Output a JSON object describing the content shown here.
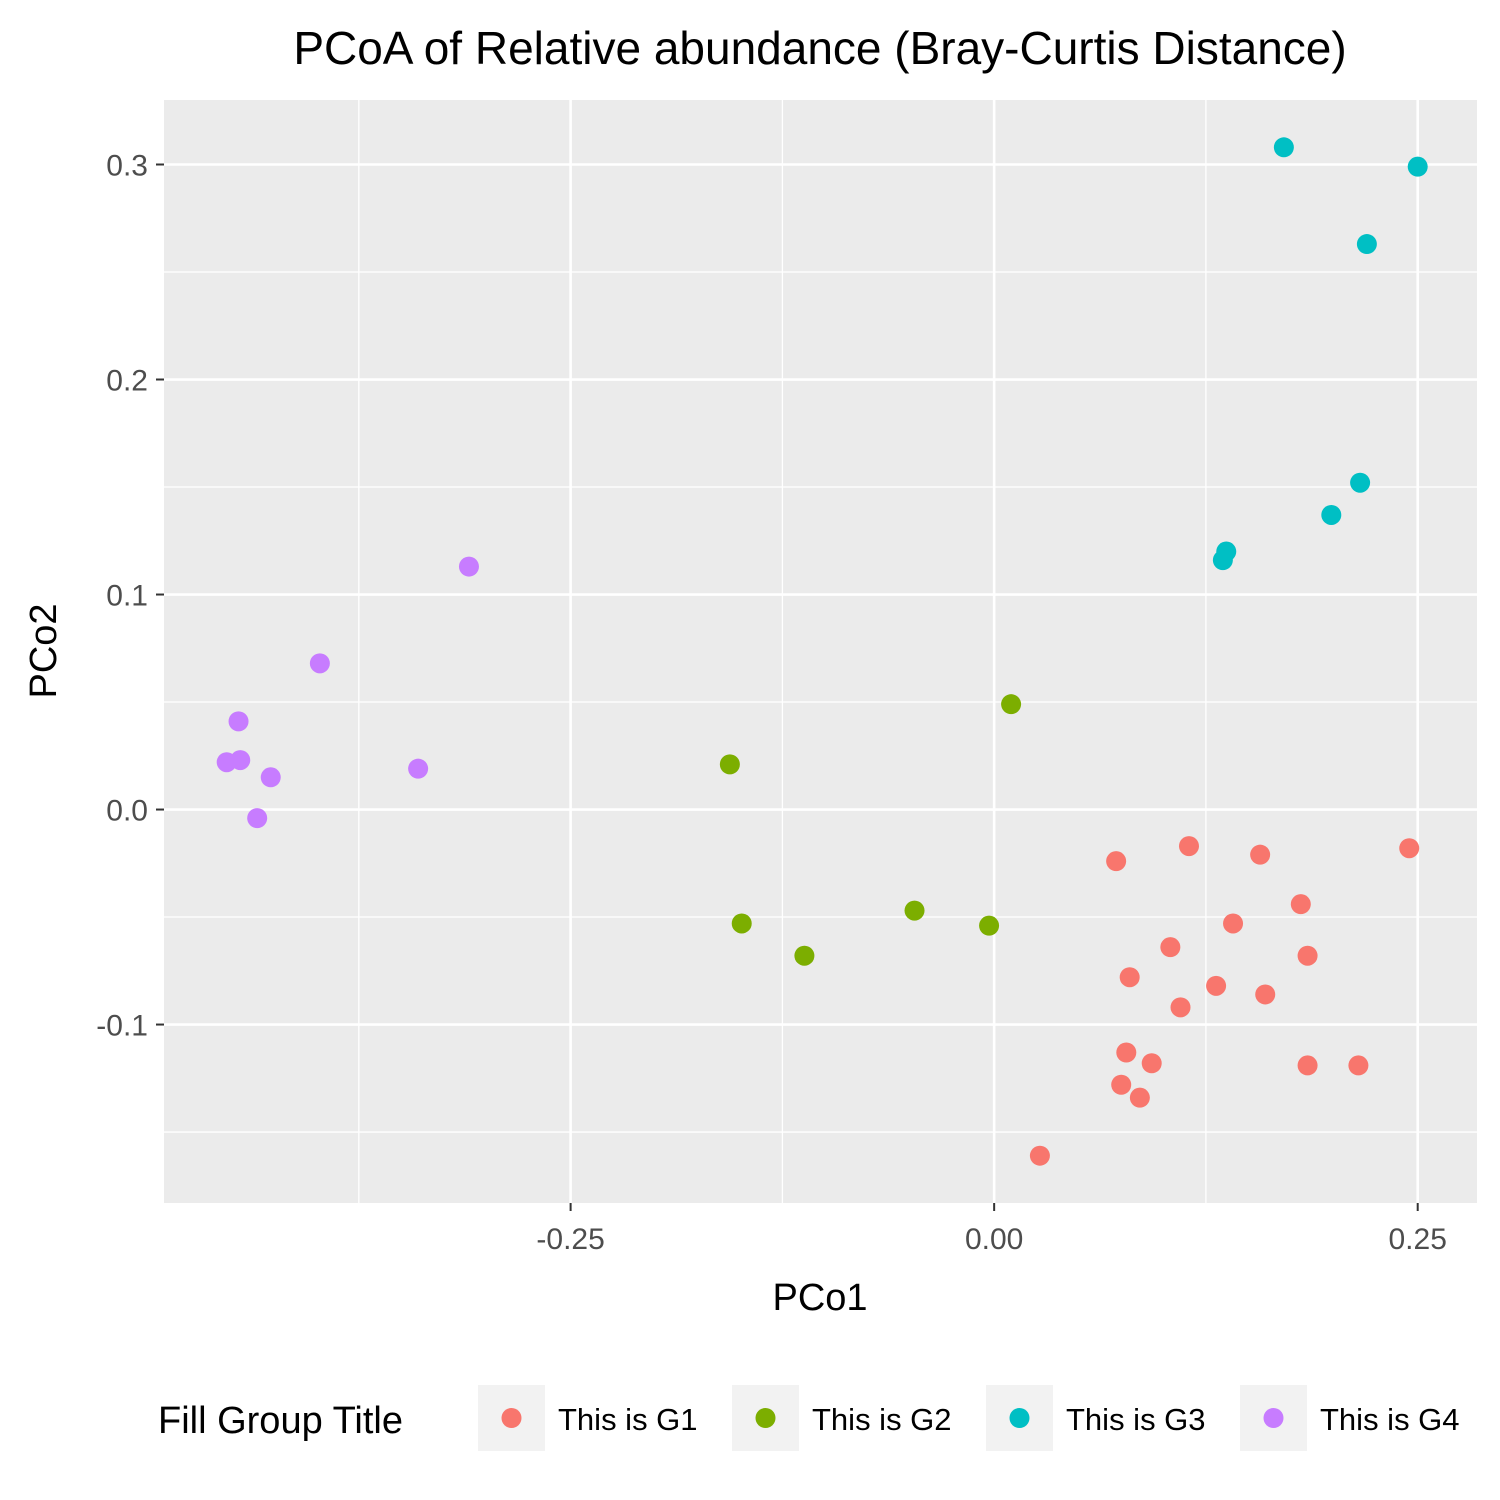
{
  "chart_data": {
    "type": "scatter",
    "title": "PCoA of Relative abundance (Bray-Curtis Distance)",
    "xlabel": "PCo1",
    "ylabel": "PCo2",
    "xlim": [
      -0.49,
      0.285
    ],
    "ylim": [
      -0.183,
      0.33
    ],
    "x_ticks": [
      -0.25,
      0.0,
      0.25
    ],
    "x_tick_labels": [
      "-0.25",
      "0.00",
      "0.25"
    ],
    "y_ticks": [
      -0.1,
      0.0,
      0.1,
      0.2,
      0.3
    ],
    "y_tick_labels": [
      "-0.1",
      "0.0",
      "0.1",
      "0.2",
      "0.3"
    ],
    "grid": true,
    "legend_position": "bottom",
    "legend_title": "Fill Group Title",
    "series": [
      {
        "name": "This is G1",
        "color": "#F8766D",
        "points": [
          [
            0.072,
            -0.024
          ],
          [
            0.115,
            -0.017
          ],
          [
            0.157,
            -0.021
          ],
          [
            0.245,
            -0.018
          ],
          [
            0.181,
            -0.044
          ],
          [
            0.141,
            -0.053
          ],
          [
            0.104,
            -0.064
          ],
          [
            0.08,
            -0.078
          ],
          [
            0.185,
            -0.068
          ],
          [
            0.131,
            -0.082
          ],
          [
            0.16,
            -0.086
          ],
          [
            0.11,
            -0.092
          ],
          [
            0.078,
            -0.113
          ],
          [
            0.093,
            -0.118
          ],
          [
            0.185,
            -0.119
          ],
          [
            0.215,
            -0.119
          ],
          [
            0.075,
            -0.128
          ],
          [
            0.086,
            -0.134
          ],
          [
            0.027,
            -0.161
          ]
        ]
      },
      {
        "name": "This is G2",
        "color": "#7CAE00",
        "points": [
          [
            0.01,
            0.049
          ],
          [
            -0.156,
            0.021
          ],
          [
            -0.149,
            -0.053
          ],
          [
            -0.047,
            -0.047
          ],
          [
            -0.003,
            -0.054
          ],
          [
            -0.112,
            -0.068
          ]
        ]
      },
      {
        "name": "This is G3",
        "color": "#00BFC4",
        "points": [
          [
            0.171,
            0.308
          ],
          [
            0.25,
            0.299
          ],
          [
            0.22,
            0.263
          ],
          [
            0.216,
            0.152
          ],
          [
            0.199,
            0.137
          ],
          [
            0.137,
            0.12
          ],
          [
            0.135,
            0.116
          ]
        ]
      },
      {
        "name": "This is G4",
        "color": "#C77CFF",
        "points": [
          [
            -0.31,
            0.113
          ],
          [
            -0.398,
            0.068
          ],
          [
            -0.446,
            0.041
          ],
          [
            -0.453,
            0.022
          ],
          [
            -0.445,
            0.023
          ],
          [
            -0.427,
            0.015
          ],
          [
            -0.34,
            0.019
          ],
          [
            -0.435,
            -0.004
          ]
        ]
      }
    ]
  }
}
